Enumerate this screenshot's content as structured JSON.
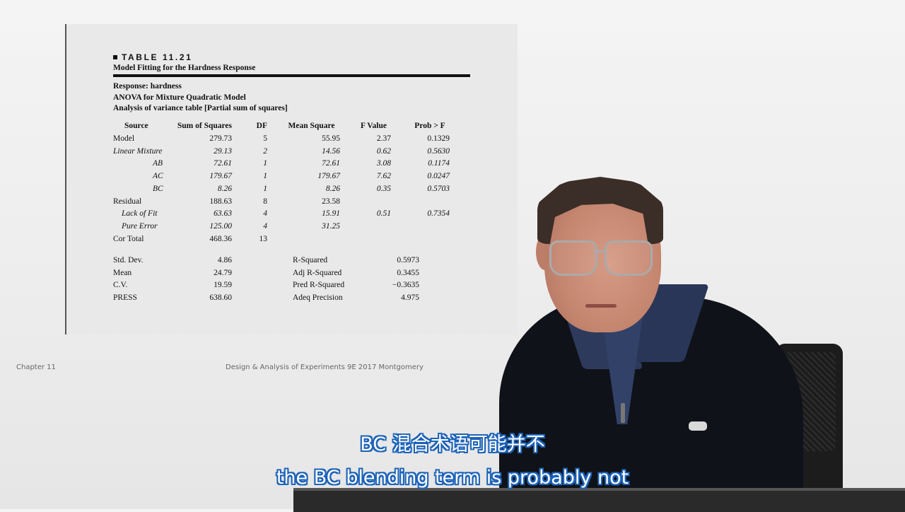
{
  "table": {
    "label": "TABLE 11.21",
    "caption": "Model Fitting for the Hardness Response",
    "info": [
      "Response: hardness",
      "ANOVA for Mixture Quadratic Model",
      "Analysis of variance table [Partial sum of squares]"
    ],
    "headers": [
      "Source",
      "Sum of Squares",
      "DF",
      "Mean Square",
      "F Value",
      "Prob > F"
    ],
    "rows": [
      {
        "source": "Model",
        "ss": "279.73",
        "df": "5",
        "ms": "55.95",
        "f": "2.37",
        "p": "0.1329",
        "italic": false,
        "indent": 0
      },
      {
        "source": "Linear Mixture",
        "ss": "29.13",
        "df": "2",
        "ms": "14.56",
        "f": "0.62",
        "p": "0.5630",
        "italic": true,
        "indent": 0
      },
      {
        "source": "AB",
        "ss": "72.61",
        "df": "1",
        "ms": "72.61",
        "f": "3.08",
        "p": "0.1174",
        "italic": true,
        "indent": 2
      },
      {
        "source": "AC",
        "ss": "179.67",
        "df": "1",
        "ms": "179.67",
        "f": "7.62",
        "p": "0.0247",
        "italic": true,
        "indent": 2
      },
      {
        "source": "BC",
        "ss": "8.26",
        "df": "1",
        "ms": "8.26",
        "f": "0.35",
        "p": "0.5703",
        "italic": true,
        "indent": 2
      },
      {
        "source": "Residual",
        "ss": "188.63",
        "df": "8",
        "ms": "23.58",
        "f": "",
        "p": "",
        "italic": false,
        "indent": 0
      },
      {
        "source": "Lack of Fit",
        "ss": "63.63",
        "df": "4",
        "ms": "15.91",
        "f": "0.51",
        "p": "0.7354",
        "italic": true,
        "indent": 1
      },
      {
        "source": "Pure Error",
        "ss": "125.00",
        "df": "4",
        "ms": "31.25",
        "f": "",
        "p": "",
        "italic": true,
        "indent": 1
      },
      {
        "source": "Cor Total",
        "ss": "468.36",
        "df": "13",
        "ms": "",
        "f": "",
        "p": "",
        "italic": false,
        "indent": 0
      }
    ],
    "stats": [
      {
        "label": "Std. Dev.",
        "value": "4.86",
        "label2": "R-Squared",
        "value2": "0.5973"
      },
      {
        "label": "Mean",
        "value": "24.79",
        "label2": "Adj R-Squared",
        "value2": "0.3455"
      },
      {
        "label": "C.V.",
        "value": "19.59",
        "label2": "Pred R-Squared",
        "value2": "−0.3635"
      },
      {
        "label": "PRESS",
        "value": "638.60",
        "label2": "Adeq Precision",
        "value2": "4.975"
      }
    ]
  },
  "footer": {
    "left": "Chapter 11",
    "center": "Design & Analysis of Experiments 9E 2017 Montgomery"
  },
  "subtitles": {
    "zh": "BC 混合术语可能并不",
    "en": "the BC blending term is probably not"
  }
}
